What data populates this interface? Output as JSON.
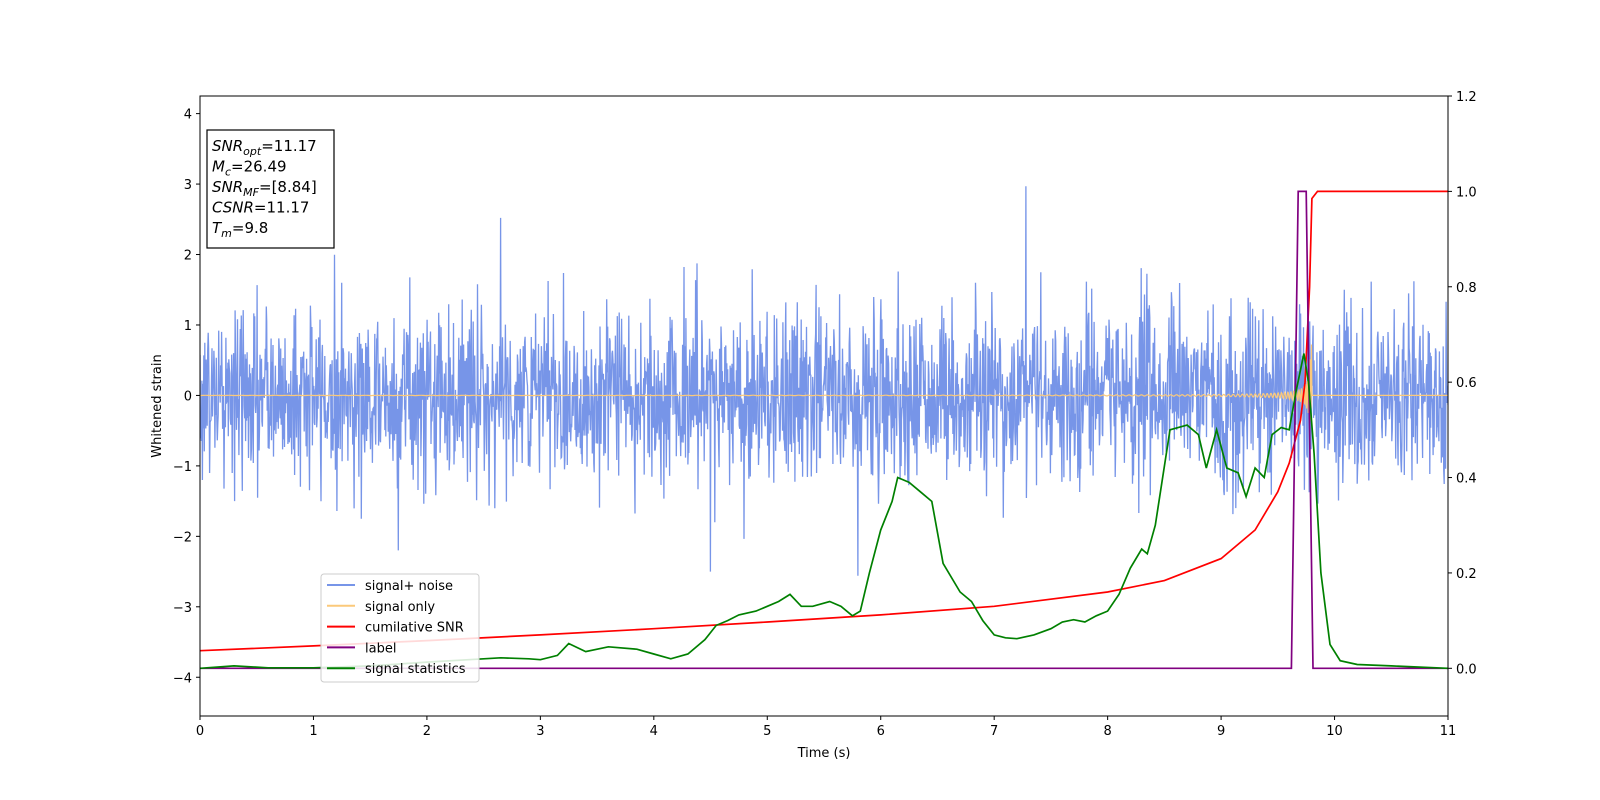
{
  "chart_data": {
    "type": "line",
    "xlabel": "Time (s)",
    "ylabel": "Whitened strain",
    "xlim": [
      0,
      11
    ],
    "ylim_left": [
      -4.55,
      4.25
    ],
    "ylim_right": [
      -0.1,
      1.2
    ],
    "x_ticks": [
      "0",
      "1",
      "2",
      "3",
      "4",
      "5",
      "6",
      "7",
      "8",
      "9",
      "10",
      "11"
    ],
    "y_ticks_left": [
      "4",
      "3",
      "2",
      "1",
      "0",
      "−1",
      "−2",
      "−3",
      "−4"
    ],
    "y_ticks_left_values": [
      4,
      3,
      2,
      1,
      0,
      -1,
      -2,
      -3,
      -4
    ],
    "y_ticks_right": [
      "1.2",
      "1.0",
      "0.8",
      "0.6",
      "0.4",
      "0.2",
      "0.0"
    ],
    "y_ticks_right_values": [
      1.2,
      1.0,
      0.8,
      0.6,
      0.4,
      0.2,
      0.0
    ],
    "grid": false,
    "legend_position": "lower-left",
    "annotation": [
      {
        "main": "SNR",
        "sub": "opt",
        "rest": "=11.17"
      },
      {
        "main": "M",
        "sub": "c",
        "rest": "=26.49"
      },
      {
        "main": "SNR",
        "sub": "MF",
        "rest": "=[8.84]"
      },
      {
        "main": "CSNR",
        "sub": "",
        "rest": "=11.17"
      },
      {
        "main": "T",
        "sub": "m",
        "rest": "=9.8"
      }
    ],
    "series": [
      {
        "name": "signal+ noise",
        "axis": "left",
        "color": "#7795e8",
        "kind": "noise",
        "std": 0.62,
        "notable_peaks": [
          {
            "x": 7.28,
            "y": 2.97
          },
          {
            "x": 2.65,
            "y": 2.52
          },
          {
            "x": 5.8,
            "y": -2.56
          },
          {
            "x": 4.5,
            "y": -2.5
          },
          {
            "x": 1.75,
            "y": -2.2
          }
        ]
      },
      {
        "name": "signal only",
        "axis": "left",
        "color": "#fbc97a",
        "kind": "chirp",
        "merger_x": 9.8
      },
      {
        "name": "cumilative SNR",
        "axis": "right",
        "color": "#ff0000",
        "x": [
          0,
          1,
          2,
          3,
          4,
          5,
          6,
          7,
          8,
          8.5,
          9,
          9.3,
          9.5,
          9.6,
          9.7,
          9.74,
          9.78,
          9.8,
          9.85,
          10,
          11
        ],
        "y": [
          0.037,
          0.047,
          0.058,
          0.07,
          0.083,
          0.097,
          0.112,
          0.13,
          0.16,
          0.184,
          0.23,
          0.29,
          0.37,
          0.43,
          0.52,
          0.6,
          0.8,
          0.985,
          1.0,
          1.0,
          1.0
        ]
      },
      {
        "name": "label",
        "axis": "right",
        "color": "#800080",
        "x": [
          0,
          9.62,
          9.68,
          9.75,
          9.81,
          11
        ],
        "y": [
          0.0,
          0.0,
          1.0,
          1.0,
          0.0,
          0.0
        ]
      },
      {
        "name": "signal statistics",
        "axis": "right",
        "color": "#008000",
        "x": [
          0,
          0.3,
          0.6,
          1.0,
          1.5,
          2.0,
          2.5,
          2.65,
          2.9,
          3.0,
          3.15,
          3.25,
          3.4,
          3.6,
          3.85,
          4.0,
          4.15,
          4.3,
          4.45,
          4.55,
          4.65,
          4.75,
          4.9,
          5.0,
          5.1,
          5.2,
          5.3,
          5.4,
          5.55,
          5.65,
          5.75,
          5.82,
          5.9,
          6.0,
          6.1,
          6.15,
          6.25,
          6.35,
          6.45,
          6.55,
          6.7,
          6.8,
          6.9,
          7.0,
          7.1,
          7.2,
          7.35,
          7.5,
          7.6,
          7.7,
          7.8,
          7.9,
          8.0,
          8.1,
          8.2,
          8.3,
          8.35,
          8.42,
          8.55,
          8.7,
          8.8,
          8.87,
          8.96,
          9.05,
          9.15,
          9.22,
          9.3,
          9.38,
          9.45,
          9.53,
          9.6,
          9.66,
          9.73,
          9.77,
          9.82,
          9.88,
          9.96,
          10.05,
          10.2,
          10.5,
          11.0
        ],
        "y": [
          0.0,
          0.005,
          0.001,
          0.001,
          0.005,
          0.013,
          0.02,
          0.022,
          0.02,
          0.018,
          0.027,
          0.052,
          0.035,
          0.045,
          0.04,
          0.03,
          0.02,
          0.03,
          0.06,
          0.09,
          0.1,
          0.112,
          0.12,
          0.13,
          0.14,
          0.155,
          0.13,
          0.13,
          0.14,
          0.13,
          0.11,
          0.12,
          0.2,
          0.29,
          0.35,
          0.4,
          0.39,
          0.37,
          0.35,
          0.22,
          0.16,
          0.14,
          0.1,
          0.07,
          0.064,
          0.062,
          0.07,
          0.083,
          0.097,
          0.102,
          0.097,
          0.11,
          0.12,
          0.155,
          0.21,
          0.25,
          0.24,
          0.3,
          0.5,
          0.51,
          0.49,
          0.42,
          0.5,
          0.42,
          0.41,
          0.36,
          0.42,
          0.4,
          0.49,
          0.505,
          0.5,
          0.58,
          0.66,
          0.6,
          0.45,
          0.2,
          0.05,
          0.016,
          0.008,
          0.005,
          0.0
        ]
      }
    ]
  }
}
